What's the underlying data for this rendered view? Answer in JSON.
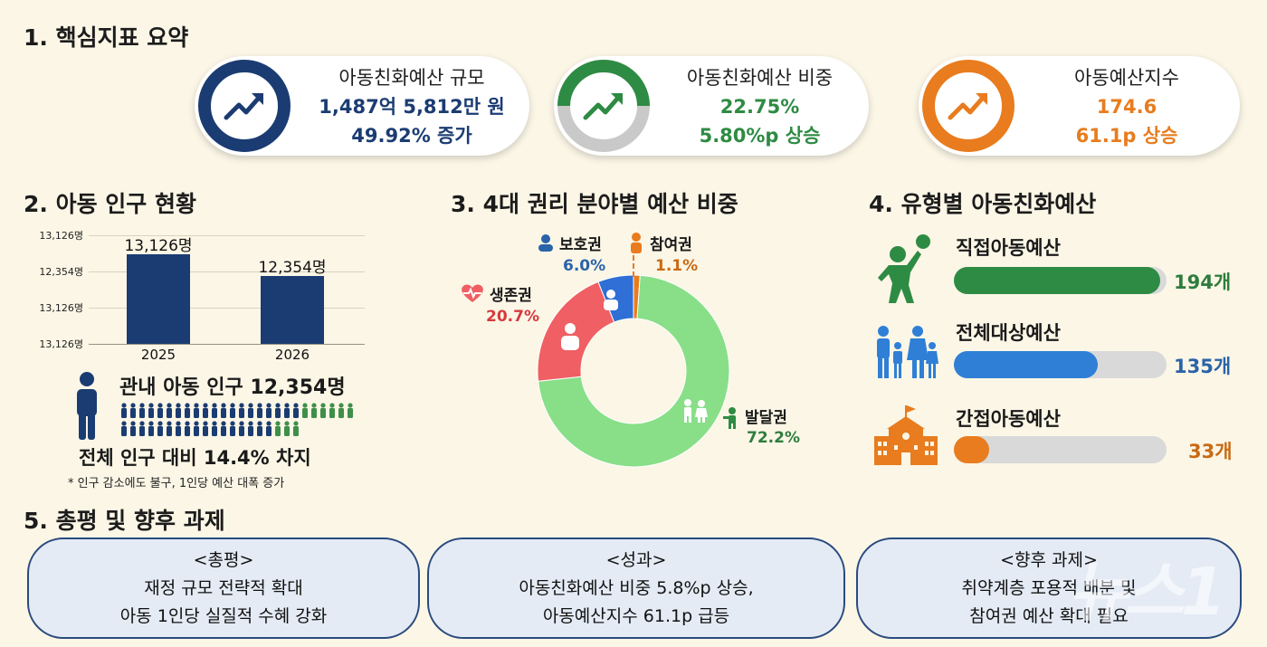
{
  "section1": {
    "title": "1. 핵심지표 요약",
    "kpis": [
      {
        "label": "아동친화예산 규모",
        "value": "1,487억 5,812만 원",
        "change": "49.92% 증가",
        "color": "#1b3c72",
        "icon": "trend-up-icon"
      },
      {
        "label": "아동친화예산 비중",
        "value": "22.75%",
        "change": "5.80%p 상승",
        "color": "#2e8b43",
        "icon": "trend-up-icon"
      },
      {
        "label": "아동예산지수",
        "value": "174.6",
        "change": "61.1p 상승",
        "color": "#e87c1e",
        "icon": "trend-up-icon"
      }
    ]
  },
  "section2": {
    "title": "2. 아동 인구 현황",
    "headline": "관내 아동 인구 12,354명",
    "share": "전체 인구 대비 14.4% 차지",
    "note": "* 인구 감소에도 불구, 1인당 예산 대폭 증가",
    "icon": "child-person-icon"
  },
  "section3": {
    "title": "3. 4대 권리 분야별 예산 비중"
  },
  "section4": {
    "title": "4. 유형별 아동친화예산",
    "items": [
      {
        "label": "직접아동예산",
        "count": "194개",
        "value": 194,
        "color": "#2e8b43",
        "text_color": "#2e7d3e",
        "icon": "child-ball-icon"
      },
      {
        "label": "전체대상예산",
        "count": "135개",
        "value": 135,
        "color": "#2f7fd6",
        "text_color": "#2a63a8",
        "icon": "family-icon"
      },
      {
        "label": "간접아동예산",
        "count": "33개",
        "value": 33,
        "color": "#e87c1e",
        "text_color": "#c96a14",
        "icon": "school-icon"
      }
    ]
  },
  "section5": {
    "title": "5. 총평 및 향후 과제",
    "cards": [
      {
        "heading": "<총평>",
        "line1": "재정 규모 전략적 확대",
        "line2": "아동 1인당 실질적 수혜 강화"
      },
      {
        "heading": "<성과>",
        "line1": "아동친화예산 비중 5.8%p 상승,",
        "line2": "아동예산지수 61.1p 급등"
      },
      {
        "heading": "<향후 과제>",
        "line1": "취약계층 포용적 배분 및",
        "line2": "참여권 예산 확대 필요"
      }
    ]
  },
  "watermark": "뉴스1",
  "chart_data": [
    {
      "type": "bar",
      "categories": [
        "2025",
        "2026"
      ],
      "values": [
        13126,
        12354
      ],
      "data_labels": [
        "13,126명",
        "12,354명"
      ],
      "y_tick_labels": [
        "13,126명",
        "12,354명",
        "13,126명",
        "13,126명"
      ],
      "grid": true,
      "color": "#1b3c72"
    },
    {
      "type": "pie",
      "donut": true,
      "slices": [
        {
          "name": "발달권",
          "value": 72.2,
          "label": "72.2%",
          "color": "#88df88",
          "text_color": "#2e7d3e",
          "icon": "children-icon"
        },
        {
          "name": "생존권",
          "value": 20.7,
          "label": "20.7%",
          "color": "#ef5f63",
          "text_color": "#d83a3e",
          "icon": "heart-pulse-icon"
        },
        {
          "name": "보호권",
          "value": 6.0,
          "label": "6.0%",
          "color": "#2f6fd6",
          "text_color": "#2a63a8",
          "icon": "guardian-icon"
        },
        {
          "name": "참여권",
          "value": 1.1,
          "label": "1.1%",
          "color": "#e87c1e",
          "text_color": "#c96a14",
          "icon": "raised-hand-icon"
        }
      ]
    }
  ]
}
